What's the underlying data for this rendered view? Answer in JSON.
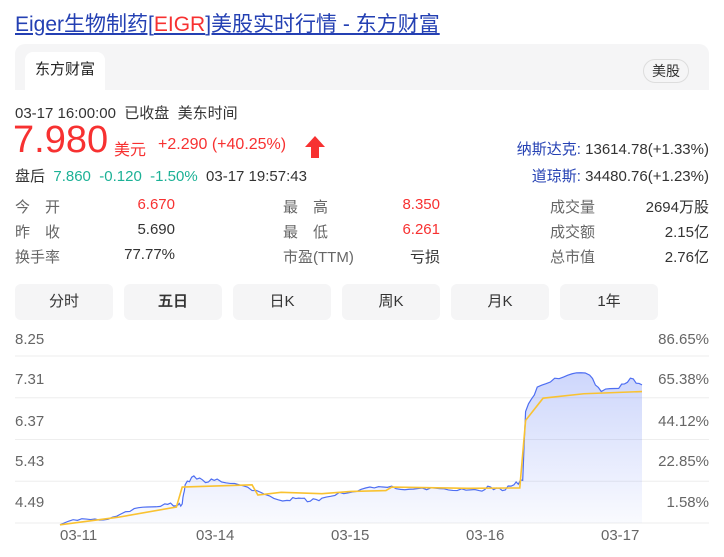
{
  "title": {
    "prefix": "Eiger生物制药[",
    "code": "EIGR",
    "suffix": "]美股实时行情 - 东方财富"
  },
  "source_tab": "东方财富",
  "market_badge": "美股",
  "status": {
    "datetime": "03-17 16:00:00",
    "state": "已收盘",
    "timezone": "美东时间"
  },
  "price": {
    "value": "7.980",
    "unit": "美元",
    "change": "+2.290",
    "pct": "(+40.25%)",
    "direction_icon": "arrow-up-icon"
  },
  "after_hours": {
    "label": "盘后",
    "price": "7.860",
    "change": "-0.120",
    "pct": "-1.50%",
    "time": "03-17 19:57:43"
  },
  "indices": [
    {
      "name": "纳斯达克:",
      "value": "13614.78(+1.33%)"
    },
    {
      "name": "道琼斯:",
      "value": "34480.76(+1.23%)"
    }
  ],
  "stats": [
    [
      {
        "label": "今　开",
        "value": "6.670",
        "color": "red"
      },
      {
        "label": "最　高",
        "value": "8.350",
        "color": "red"
      },
      {
        "label": "成交量",
        "value": "2694万股",
        "color": "normal"
      }
    ],
    [
      {
        "label": "昨　收",
        "value": "5.690",
        "color": "normal"
      },
      {
        "label": "最　低",
        "value": "6.261",
        "color": "red"
      },
      {
        "label": "成交额",
        "value": "2.15亿",
        "color": "normal"
      }
    ],
    [
      {
        "label": "换手率",
        "value": "77.77%",
        "color": "normal"
      },
      {
        "label": "市盈(TTM)",
        "value": "亏损",
        "color": "normal"
      },
      {
        "label": "总市值",
        "value": "2.76亿",
        "color": "normal"
      }
    ]
  ],
  "tabs": [
    {
      "label": "分时"
    },
    {
      "label": "五日",
      "active": true
    },
    {
      "label": "日K"
    },
    {
      "label": "周K"
    },
    {
      "label": "月K"
    },
    {
      "label": "1年"
    }
  ],
  "colors": {
    "price_line": "#4e6ef2",
    "avg_line": "#f9c231",
    "up": "#f73131",
    "down": "#1cb196",
    "link": "#2440b3"
  },
  "chart_data": {
    "type": "line",
    "x_ticks": [
      "03-11",
      "03-14",
      "03-15",
      "03-16",
      "03-17"
    ],
    "y_ticks_left": [
      "8.25",
      "7.31",
      "6.37",
      "5.43",
      "4.49"
    ],
    "y_ticks_right": [
      "86.65%",
      "65.38%",
      "44.12%",
      "22.85%",
      "1.58%"
    ],
    "ylim": [
      4.49,
      8.25
    ],
    "grid": true,
    "series": [
      {
        "role": "price",
        "points": [
          [
            0,
            4.45
          ],
          [
            0.03,
            4.55
          ],
          [
            0.06,
            4.58
          ],
          [
            0.09,
            4.62
          ],
          [
            0.12,
            4.75
          ],
          [
            0.15,
            4.85
          ],
          [
            0.18,
            4.92
          ],
          [
            0.2,
            4.88
          ],
          [
            0.21,
            4.92
          ],
          [
            0.215,
            5.35
          ],
          [
            0.23,
            5.55
          ],
          [
            0.25,
            5.4
          ],
          [
            0.27,
            5.48
          ],
          [
            0.3,
            5.38
          ],
          [
            0.33,
            5.22
          ],
          [
            0.36,
            5.1
          ],
          [
            0.39,
            5.0
          ],
          [
            0.41,
            5.05
          ],
          [
            0.43,
            4.98
          ],
          [
            0.45,
            5.05
          ],
          [
            0.48,
            5.18
          ],
          [
            0.51,
            5.2
          ],
          [
            0.54,
            5.28
          ],
          [
            0.57,
            5.32
          ],
          [
            0.6,
            5.25
          ],
          [
            0.63,
            5.24
          ],
          [
            0.66,
            5.26
          ],
          [
            0.69,
            5.26
          ],
          [
            0.72,
            5.22
          ],
          [
            0.74,
            5.3
          ],
          [
            0.76,
            5.22
          ],
          [
            0.78,
            5.35
          ],
          [
            0.795,
            5.45
          ],
          [
            0.8,
            7.0
          ],
          [
            0.82,
            7.55
          ],
          [
            0.85,
            7.75
          ],
          [
            0.88,
            7.85
          ],
          [
            0.91,
            7.82
          ],
          [
            0.93,
            7.45
          ],
          [
            0.96,
            7.52
          ],
          [
            0.98,
            7.75
          ],
          [
            1.0,
            7.6
          ]
        ]
      },
      {
        "role": "average",
        "points": [
          [
            0,
            4.45
          ],
          [
            0.1,
            4.62
          ],
          [
            0.2,
            4.85
          ],
          [
            0.21,
            5.3
          ],
          [
            0.33,
            5.35
          ],
          [
            0.34,
            5.12
          ],
          [
            0.38,
            5.18
          ],
          [
            0.45,
            5.15
          ],
          [
            0.5,
            5.2
          ],
          [
            0.56,
            5.22
          ],
          [
            0.57,
            5.3
          ],
          [
            0.7,
            5.27
          ],
          [
            0.79,
            5.28
          ],
          [
            0.8,
            6.8
          ],
          [
            0.83,
            7.3
          ],
          [
            0.9,
            7.4
          ],
          [
            1.0,
            7.45
          ]
        ]
      }
    ]
  }
}
